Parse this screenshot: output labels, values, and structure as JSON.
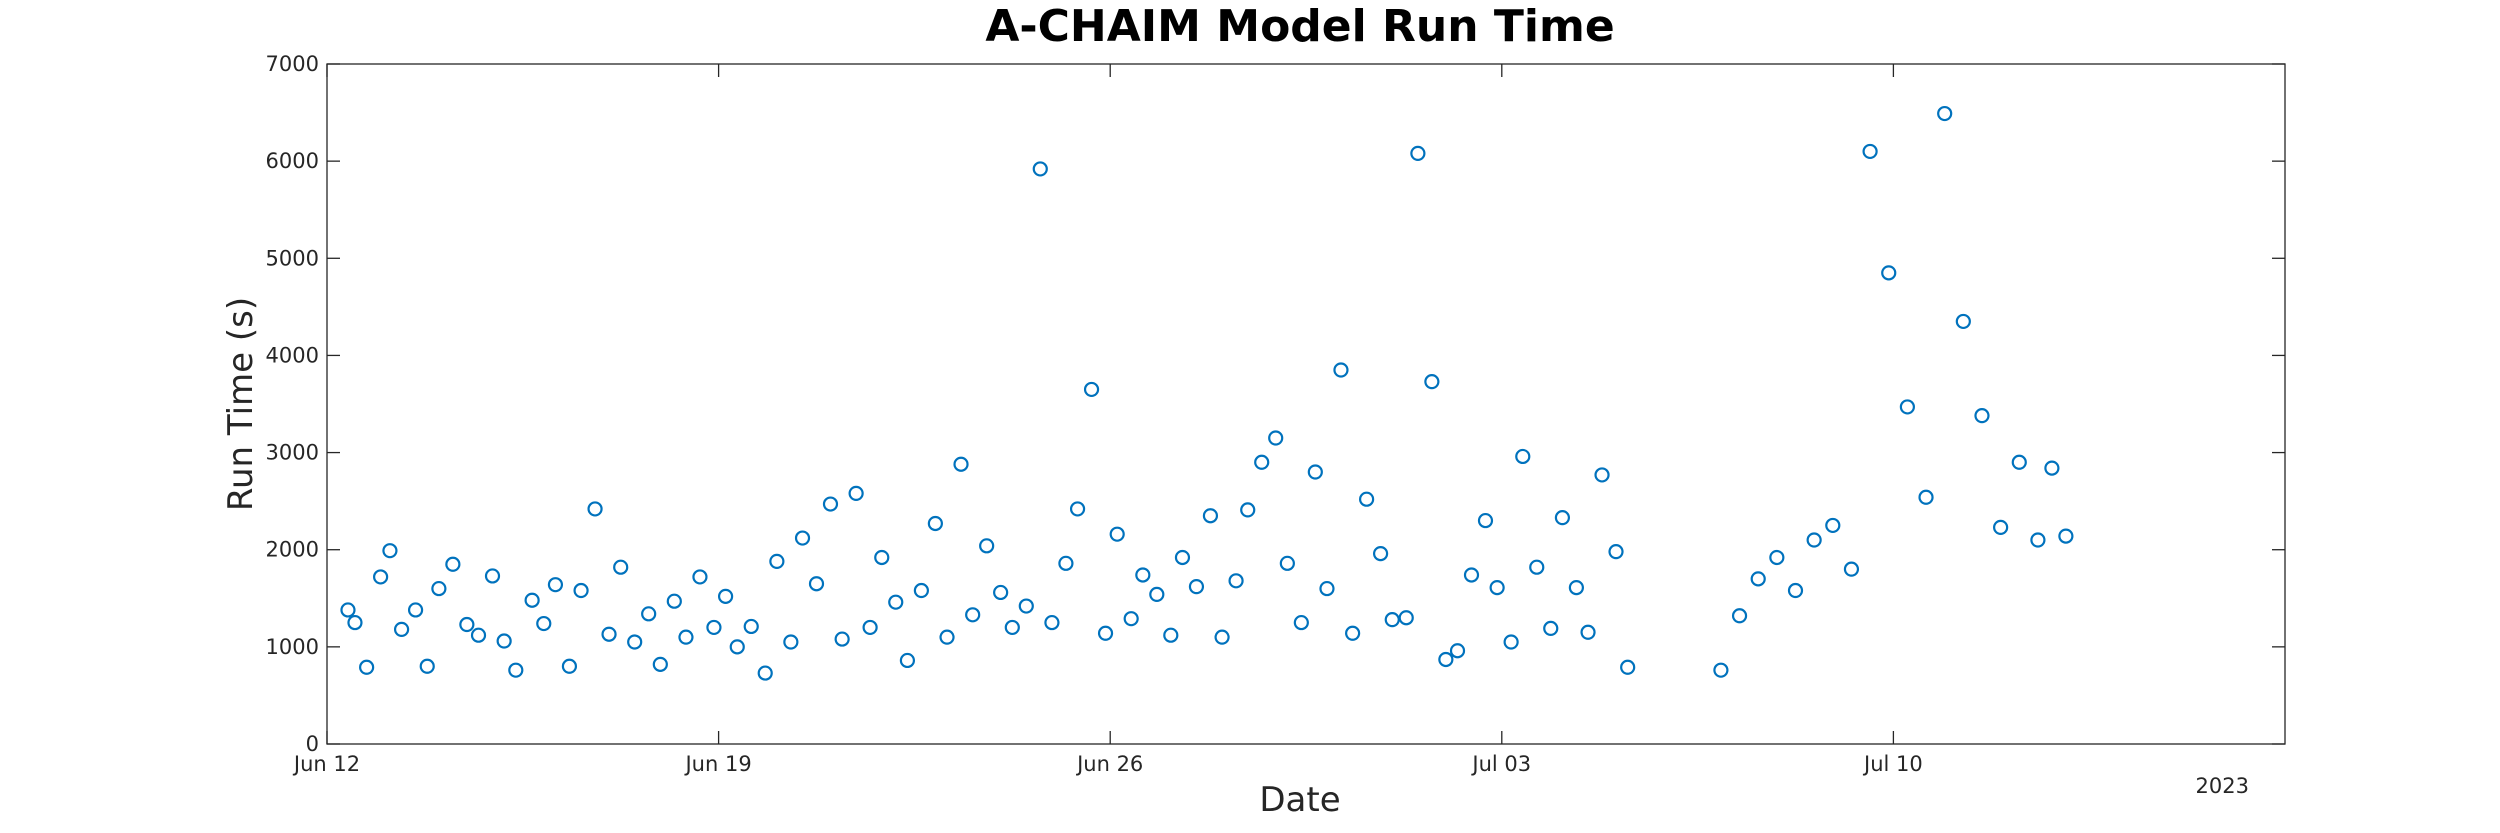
{
  "chart_data": {
    "type": "scatter",
    "title": "A-CHAIM Model Run Time",
    "xlabel": "Date",
    "ylabel": "Run Time (s)",
    "year_label": "2023",
    "x_axis_type": "date",
    "xlim": [
      "2023-06-12T00:00",
      "2023-07-17T00:00"
    ],
    "ylim": [
      0,
      7000
    ],
    "x_ticks": [
      {
        "date": "2023-06-12T00:00",
        "label": "Jun 12"
      },
      {
        "date": "2023-06-19T00:00",
        "label": "Jun 19"
      },
      {
        "date": "2023-06-26T00:00",
        "label": "Jun 26"
      },
      {
        "date": "2023-07-03T00:00",
        "label": "Jul 03"
      },
      {
        "date": "2023-07-10T00:00",
        "label": "Jul 10"
      }
    ],
    "y_ticks": [
      {
        "value": 0,
        "label": "0"
      },
      {
        "value": 1000,
        "label": "1000"
      },
      {
        "value": 2000,
        "label": "2000"
      },
      {
        "value": 3000,
        "label": "3000"
      },
      {
        "value": 4000,
        "label": "4000"
      },
      {
        "value": 5000,
        "label": "5000"
      },
      {
        "value": 6000,
        "label": "6000"
      },
      {
        "value": 7000,
        "label": "7000"
      }
    ],
    "grid": false,
    "marker": "open-circle",
    "marker_color": "#0072BD",
    "series": [
      {
        "x": [
          "2023-06-12T09:00",
          "2023-06-12T12:00",
          "2023-06-12T17:00",
          "2023-06-12T23:00",
          "2023-06-13T03:00",
          "2023-06-13T08:00",
          "2023-06-13T14:00",
          "2023-06-13T19:00",
          "2023-06-14T00:00",
          "2023-06-14T06:00",
          "2023-06-14T12:00",
          "2023-06-14T17:00",
          "2023-06-14T23:00",
          "2023-06-15T04:00",
          "2023-06-15T09:00",
          "2023-06-15T16:00",
          "2023-06-15T21:00",
          "2023-06-16T02:00",
          "2023-06-16T08:00",
          "2023-06-16T13:00",
          "2023-06-16T19:00",
          "2023-06-17T01:00",
          "2023-06-17T06:00",
          "2023-06-17T12:00",
          "2023-06-17T18:00",
          "2023-06-17T23:00",
          "2023-06-18T05:00",
          "2023-06-18T10:00",
          "2023-06-18T16:00",
          "2023-06-18T22:00",
          "2023-06-19T03:00",
          "2023-06-19T08:00",
          "2023-06-19T14:00",
          "2023-06-19T20:00",
          "2023-06-20T01:00",
          "2023-06-20T07:00",
          "2023-06-20T12:00",
          "2023-06-20T18:00",
          "2023-06-21T00:00",
          "2023-06-21T05:00",
          "2023-06-21T11:00",
          "2023-06-21T17:00",
          "2023-06-21T22:00",
          "2023-06-22T04:00",
          "2023-06-22T09:00",
          "2023-06-22T15:00",
          "2023-06-22T21:00",
          "2023-06-23T02:00",
          "2023-06-23T08:00",
          "2023-06-23T13:00",
          "2023-06-23T19:00",
          "2023-06-24T01:00",
          "2023-06-24T06:00",
          "2023-06-24T12:00",
          "2023-06-24T18:00",
          "2023-06-24T23:00",
          "2023-06-25T05:00",
          "2023-06-25T10:00",
          "2023-06-25T16:00",
          "2023-06-25T22:00",
          "2023-06-26T03:00",
          "2023-06-26T09:00",
          "2023-06-26T14:00",
          "2023-06-26T20:00",
          "2023-06-27T02:00",
          "2023-06-27T07:00",
          "2023-06-27T13:00",
          "2023-06-27T19:00",
          "2023-06-28T00:00",
          "2023-06-28T06:00",
          "2023-06-28T11:00",
          "2023-06-28T17:00",
          "2023-06-28T23:00",
          "2023-06-29T04:00",
          "2023-06-29T10:00",
          "2023-06-29T16:00",
          "2023-06-29T21:00",
          "2023-06-30T03:00",
          "2023-06-30T08:00",
          "2023-06-30T14:00",
          "2023-06-30T20:00",
          "2023-07-01T01:00",
          "2023-07-01T07:00",
          "2023-07-01T12:00",
          "2023-07-01T18:00",
          "2023-07-02T00:00",
          "2023-07-02T05:00",
          "2023-07-02T11:00",
          "2023-07-02T17:00",
          "2023-07-02T22:00",
          "2023-07-03T04:00",
          "2023-07-03T09:00",
          "2023-07-03T15:00",
          "2023-07-03T21:00",
          "2023-07-04T02:00",
          "2023-07-04T08:00",
          "2023-07-04T13:00",
          "2023-07-04T19:00",
          "2023-07-05T01:00",
          "2023-07-05T06:00",
          "2023-07-06T22:00",
          "2023-07-07T06:00",
          "2023-07-07T14:00",
          "2023-07-07T22:00",
          "2023-07-08T06:00",
          "2023-07-08T14:00",
          "2023-07-08T22:00",
          "2023-07-09T06:00",
          "2023-07-09T14:00",
          "2023-07-09T22:00",
          "2023-07-10T06:00",
          "2023-07-10T14:00",
          "2023-07-10T22:00",
          "2023-07-11T06:00",
          "2023-07-11T14:00",
          "2023-07-11T22:00",
          "2023-07-12T06:00",
          "2023-07-12T14:00",
          "2023-07-12T20:00",
          "2023-07-13T02:00"
        ],
        "y": [
          1380,
          1250,
          790,
          1720,
          1990,
          1180,
          1380,
          800,
          1600,
          1850,
          1230,
          1120,
          1730,
          1060,
          760,
          1480,
          1240,
          1640,
          800,
          1580,
          2420,
          1130,
          1820,
          1050,
          1340,
          820,
          1470,
          1100,
          1720,
          1200,
          1520,
          1000,
          1210,
          730,
          1880,
          1050,
          2120,
          1650,
          2470,
          1080,
          2580,
          1200,
          1920,
          1460,
          860,
          1580,
          2270,
          1100,
          2880,
          1330,
          2040,
          1560,
          1200,
          1420,
          5920,
          1250,
          1860,
          2420,
          3650,
          1140,
          2160,
          1290,
          1740,
          1540,
          1120,
          1920,
          1620,
          2350,
          1100,
          1680,
          2410,
          2900,
          3150,
          1860,
          1250,
          2800,
          1600,
          3850,
          1140,
          2520,
          1960,
          1280,
          1300,
          6080,
          3730,
          870,
          960,
          1740,
          2300,
          1610,
          1050,
          2960,
          1820,
          1190,
          2330,
          1610,
          1150,
          2770,
          1980,
          790,
          760,
          1320,
          1700,
          1920,
          1580,
          2100,
          2250,
          1800,
          6100,
          4850,
          3470,
          2540,
          6490,
          4350,
          3380,
          2230,
          2900,
          2100,
          2840,
          2140
        ]
      }
    ]
  }
}
